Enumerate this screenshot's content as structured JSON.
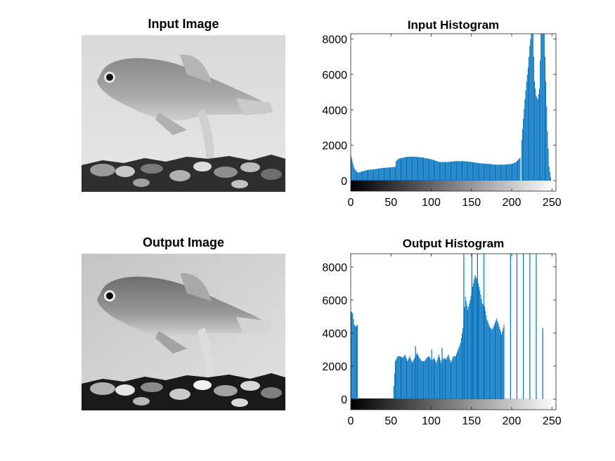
{
  "panels": {
    "input_image_title": "Input Image",
    "output_image_title": "Output Image"
  },
  "colors": {
    "bar": "#0072BD",
    "axis": "#262626"
  },
  "chart_data": [
    {
      "type": "bar",
      "title": "Input Histogram",
      "xlim": [
        0,
        255
      ],
      "ylim": [
        -600,
        8300
      ],
      "xticks": [
        0,
        50,
        100,
        150,
        200,
        250
      ],
      "yticks": [
        0,
        2000,
        4000,
        6000,
        8000
      ],
      "colorbar": "grayscale 0-255",
      "segments": [
        {
          "x": [
            0,
            4,
            8,
            14,
            20,
            30,
            40,
            50,
            55
          ],
          "y": [
            1400,
            700,
            450,
            520,
            600,
            650,
            720,
            750,
            780
          ]
        },
        {
          "x": [
            56,
            58,
            60,
            65,
            70,
            80,
            90,
            100,
            110,
            120,
            130,
            140,
            150,
            160,
            170,
            180,
            190,
            200,
            205,
            210
          ],
          "y": [
            1100,
            1200,
            1250,
            1300,
            1350,
            1350,
            1300,
            1200,
            1050,
            1050,
            1100,
            1100,
            1050,
            980,
            950,
            900,
            900,
            950,
            1050,
            1300
          ]
        },
        {
          "x": [
            212,
            214,
            216,
            218,
            220,
            222,
            224,
            226,
            228,
            230,
            232,
            234,
            236,
            238,
            240,
            242,
            244,
            246,
            248
          ],
          "y": [
            2300,
            3500,
            4600,
            5600,
            6400,
            7600,
            8400,
            8400,
            5600,
            4800,
            4600,
            5200,
            8400,
            8400,
            8400,
            5600,
            2800,
            800,
            200
          ]
        }
      ],
      "spikes": []
    },
    {
      "type": "bar",
      "title": "Output Histogram",
      "xlim": [
        0,
        255
      ],
      "ylim": [
        -600,
        8800
      ],
      "xticks": [
        0,
        50,
        100,
        150,
        200,
        250
      ],
      "yticks": [
        0,
        2000,
        4000,
        6000,
        8000
      ],
      "colorbar": "grayscale 0-255",
      "segments": [
        {
          "x": [
            0,
            2,
            4,
            6,
            8
          ],
          "y": [
            5300,
            5200,
            4500,
            4400,
            4500
          ]
        },
        {
          "x": [
            53,
            55,
            58,
            61,
            64,
            67,
            70,
            73,
            76,
            79,
            82,
            85,
            88,
            91,
            94,
            97,
            100,
            103,
            106,
            109,
            112,
            115,
            118,
            121,
            124,
            127,
            130,
            133,
            136,
            139,
            142,
            145,
            148,
            151,
            154,
            157,
            160,
            163,
            166,
            169,
            172,
            175,
            178,
            181,
            184,
            187,
            190
          ],
          "y": [
            800,
            2300,
            2600,
            2600,
            2500,
            2700,
            2300,
            2600,
            2200,
            2500,
            2800,
            2500,
            2300,
            2300,
            2500,
            2600,
            2300,
            2500,
            2200,
            2700,
            2200,
            2500,
            2400,
            2700,
            2200,
            2600,
            2600,
            3000,
            3400,
            4300,
            6200,
            5400,
            6000,
            6800,
            7500,
            7200,
            6600,
            5800,
            5600,
            4800,
            4400,
            4200,
            4500,
            4900,
            4400,
            3900,
            4500
          ]
        }
      ],
      "spikes": [
        {
          "x": 80,
          "y": 3200
        },
        {
          "x": 100,
          "y": 3000
        },
        {
          "x": 113,
          "y": 3100
        },
        {
          "x": 140,
          "y": 8800
        },
        {
          "x": 150,
          "y": 8800
        },
        {
          "x": 157,
          "y": 8800
        },
        {
          "x": 165,
          "y": 8800
        },
        {
          "x": 198,
          "y": 8800
        },
        {
          "x": 206,
          "y": 8800
        },
        {
          "x": 214,
          "y": 8800
        },
        {
          "x": 222,
          "y": 8800
        },
        {
          "x": 230,
          "y": 8800
        },
        {
          "x": 238,
          "y": 4300
        }
      ]
    }
  ]
}
